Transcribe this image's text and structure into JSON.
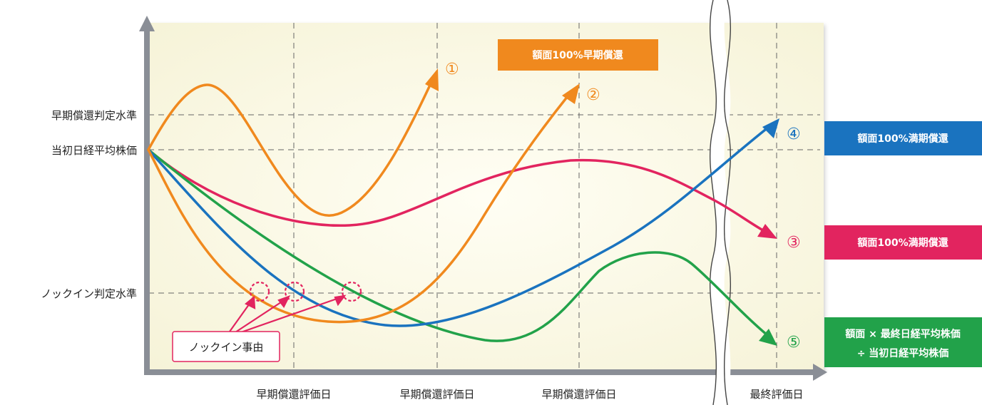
{
  "y_levels": {
    "early_redemption_level": "早期償還判定水準",
    "initial_price": "当初日経平均株価",
    "knock_in_level": "ノックイン判定水準"
  },
  "x_labels": [
    "早期償還評価日",
    "早期償還評価日",
    "早期償還評価日",
    "最終評価日"
  ],
  "knock_in_event": "ノックイン事由",
  "scenarios": [
    {
      "number": "①",
      "color": "#f0891e"
    },
    {
      "number": "②",
      "color": "#f0891e"
    },
    {
      "number": "③",
      "color": "#e2245f"
    },
    {
      "number": "④",
      "color": "#1a73bf"
    },
    {
      "number": "⑤",
      "color": "#22a24a"
    }
  ],
  "outcomes": {
    "early": {
      "text": "額面100%早期償還",
      "color": "#f0891e"
    },
    "maturity_blue": {
      "text": "額面100%満期償還",
      "color": "#1a73bf"
    },
    "maturity_red": {
      "text": "額面100%満期償還",
      "color": "#e2245f"
    },
    "green_line1": "額面 × 最終日経平均株価",
    "green_line2": "÷ 当初日経平均株価",
    "green_color": "#22a24a"
  },
  "colors": {
    "axis": "#8a8e96",
    "grid": "#666666",
    "plot_bg": "#fbf9e6",
    "knock_circle": "#e2245f"
  }
}
